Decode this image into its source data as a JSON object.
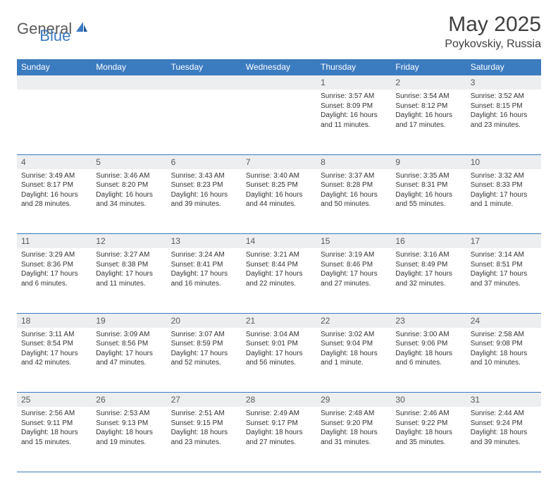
{
  "logo": {
    "text1": "General",
    "text2": "Blue"
  },
  "title": "May 2025",
  "location": "Poykovskiy, Russia",
  "colors": {
    "header_bg": "#3b7bbf",
    "header_text": "#ffffff",
    "daynum_bg": "#eceef0",
    "daynum_text": "#595959",
    "body_text": "#333333",
    "rule": "#3b7bbf"
  },
  "weekdays": [
    "Sunday",
    "Monday",
    "Tuesday",
    "Wednesday",
    "Thursday",
    "Friday",
    "Saturday"
  ],
  "weeks": [
    [
      null,
      null,
      null,
      null,
      {
        "n": "1",
        "sr": "3:57 AM",
        "ss": "8:09 PM",
        "dl": "16 hours and 11 minutes."
      },
      {
        "n": "2",
        "sr": "3:54 AM",
        "ss": "8:12 PM",
        "dl": "16 hours and 17 minutes."
      },
      {
        "n": "3",
        "sr": "3:52 AM",
        "ss": "8:15 PM",
        "dl": "16 hours and 23 minutes."
      }
    ],
    [
      {
        "n": "4",
        "sr": "3:49 AM",
        "ss": "8:17 PM",
        "dl": "16 hours and 28 minutes."
      },
      {
        "n": "5",
        "sr": "3:46 AM",
        "ss": "8:20 PM",
        "dl": "16 hours and 34 minutes."
      },
      {
        "n": "6",
        "sr": "3:43 AM",
        "ss": "8:23 PM",
        "dl": "16 hours and 39 minutes."
      },
      {
        "n": "7",
        "sr": "3:40 AM",
        "ss": "8:25 PM",
        "dl": "16 hours and 44 minutes."
      },
      {
        "n": "8",
        "sr": "3:37 AM",
        "ss": "8:28 PM",
        "dl": "16 hours and 50 minutes."
      },
      {
        "n": "9",
        "sr": "3:35 AM",
        "ss": "8:31 PM",
        "dl": "16 hours and 55 minutes."
      },
      {
        "n": "10",
        "sr": "3:32 AM",
        "ss": "8:33 PM",
        "dl": "17 hours and 1 minute."
      }
    ],
    [
      {
        "n": "11",
        "sr": "3:29 AM",
        "ss": "8:36 PM",
        "dl": "17 hours and 6 minutes."
      },
      {
        "n": "12",
        "sr": "3:27 AM",
        "ss": "8:38 PM",
        "dl": "17 hours and 11 minutes."
      },
      {
        "n": "13",
        "sr": "3:24 AM",
        "ss": "8:41 PM",
        "dl": "17 hours and 16 minutes."
      },
      {
        "n": "14",
        "sr": "3:21 AM",
        "ss": "8:44 PM",
        "dl": "17 hours and 22 minutes."
      },
      {
        "n": "15",
        "sr": "3:19 AM",
        "ss": "8:46 PM",
        "dl": "17 hours and 27 minutes."
      },
      {
        "n": "16",
        "sr": "3:16 AM",
        "ss": "8:49 PM",
        "dl": "17 hours and 32 minutes."
      },
      {
        "n": "17",
        "sr": "3:14 AM",
        "ss": "8:51 PM",
        "dl": "17 hours and 37 minutes."
      }
    ],
    [
      {
        "n": "18",
        "sr": "3:11 AM",
        "ss": "8:54 PM",
        "dl": "17 hours and 42 minutes."
      },
      {
        "n": "19",
        "sr": "3:09 AM",
        "ss": "8:56 PM",
        "dl": "17 hours and 47 minutes."
      },
      {
        "n": "20",
        "sr": "3:07 AM",
        "ss": "8:59 PM",
        "dl": "17 hours and 52 minutes."
      },
      {
        "n": "21",
        "sr": "3:04 AM",
        "ss": "9:01 PM",
        "dl": "17 hours and 56 minutes."
      },
      {
        "n": "22",
        "sr": "3:02 AM",
        "ss": "9:04 PM",
        "dl": "18 hours and 1 minute."
      },
      {
        "n": "23",
        "sr": "3:00 AM",
        "ss": "9:06 PM",
        "dl": "18 hours and 6 minutes."
      },
      {
        "n": "24",
        "sr": "2:58 AM",
        "ss": "9:08 PM",
        "dl": "18 hours and 10 minutes."
      }
    ],
    [
      {
        "n": "25",
        "sr": "2:56 AM",
        "ss": "9:11 PM",
        "dl": "18 hours and 15 minutes."
      },
      {
        "n": "26",
        "sr": "2:53 AM",
        "ss": "9:13 PM",
        "dl": "18 hours and 19 minutes."
      },
      {
        "n": "27",
        "sr": "2:51 AM",
        "ss": "9:15 PM",
        "dl": "18 hours and 23 minutes."
      },
      {
        "n": "28",
        "sr": "2:49 AM",
        "ss": "9:17 PM",
        "dl": "18 hours and 27 minutes."
      },
      {
        "n": "29",
        "sr": "2:48 AM",
        "ss": "9:20 PM",
        "dl": "18 hours and 31 minutes."
      },
      {
        "n": "30",
        "sr": "2:46 AM",
        "ss": "9:22 PM",
        "dl": "18 hours and 35 minutes."
      },
      {
        "n": "31",
        "sr": "2:44 AM",
        "ss": "9:24 PM",
        "dl": "18 hours and 39 minutes."
      }
    ]
  ],
  "labels": {
    "sunrise": "Sunrise: ",
    "sunset": "Sunset: ",
    "daylight": "Daylight: "
  }
}
